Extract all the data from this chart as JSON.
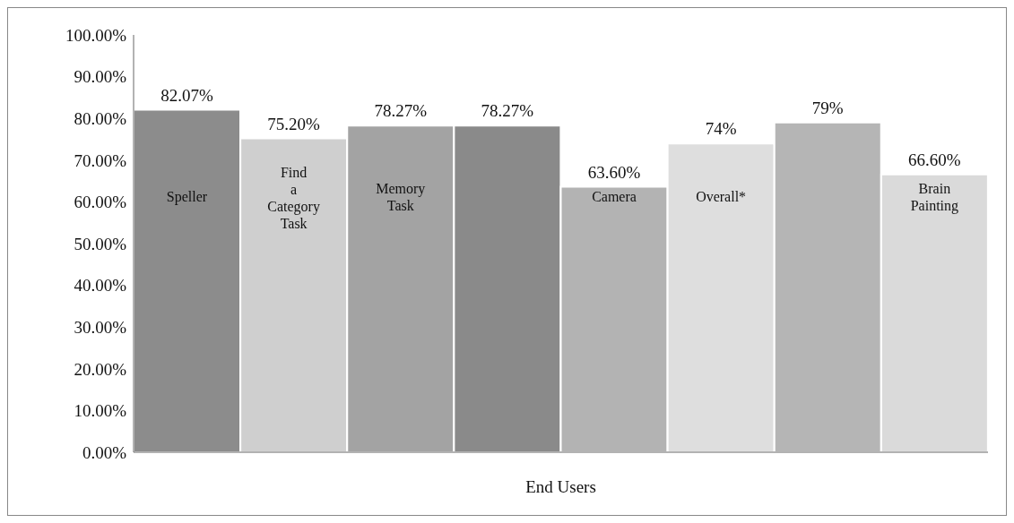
{
  "chart_data": {
    "type": "bar",
    "xlabel": "End Users",
    "categories": [
      "Speller",
      "Find a Category Task",
      "Memory Task",
      null,
      "Camera",
      "Overall*",
      null,
      "Brain Painting"
    ],
    "values": [
      82.07,
      75.2,
      78.27,
      78.27,
      63.6,
      74,
      79,
      66.6
    ],
    "colors": [
      "#8c8c8c",
      "#cfcfcf",
      "#a3a3a3",
      "#8a8a8a",
      "#b3b3b3",
      "#dedede",
      "#b5b5b5",
      "#dadada"
    ],
    "value_labels": [
      "82.07%",
      "75.20%",
      "78.27%",
      "78.27%",
      "63.60%",
      "74%",
      "79%",
      "66.60%"
    ],
    "ylim": [
      0,
      100
    ],
    "yticks": [
      {
        "value": 0,
        "label": "0.00%"
      },
      {
        "value": 10,
        "label": "10.00%"
      },
      {
        "value": 20,
        "label": "20.00%"
      },
      {
        "value": 30,
        "label": "30.00%"
      },
      {
        "value": 40,
        "label": "40.00%"
      },
      {
        "value": 50,
        "label": "50.00%"
      },
      {
        "value": 60,
        "label": "60.00%"
      },
      {
        "value": 70,
        "label": "70.00%"
      },
      {
        "value": 80,
        "label": "80.00%"
      },
      {
        "value": 90,
        "label": "90.00%"
      },
      {
        "value": 100,
        "label": "100.00%"
      }
    ],
    "grid": false,
    "legend": false
  }
}
